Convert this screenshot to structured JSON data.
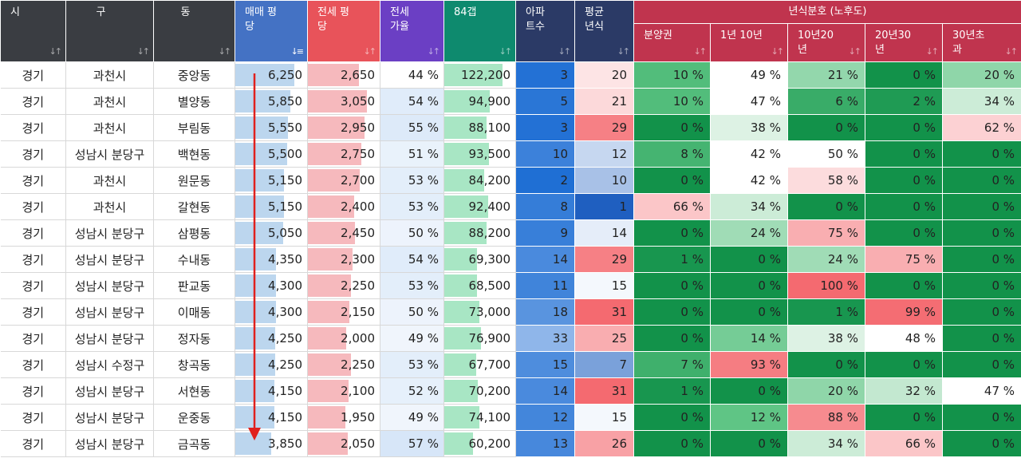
{
  "table": {
    "headers": {
      "si": "시",
      "gu": "구",
      "dong": "동",
      "sale_price": "매매 평\n당",
      "jeonse_price": "전세 평\n당",
      "jeonse_ratio": "전세\n가율",
      "gap84": "84갭",
      "apt_count": "아파\n트수",
      "avg_age": "평균\n년식",
      "age_group": "년식분호 (노후도)",
      "presale": "분양권",
      "y1_10": "1년 10년",
      "y10_20": "10년20\n년",
      "y20_30": "20년30\n년",
      "y30_plus": "30년초\n과"
    },
    "sorted_column": "sale_price",
    "colors": {
      "dark_header": "#3a3d42",
      "sale_header": "#4472c4",
      "jeonse_header": "#e8535a",
      "ratio_header": "#6b3fc4",
      "gap_header": "#0e8a6e",
      "apt_header": "#2b3a66",
      "age_header": "#2b3a66",
      "group_header": "#c0344e",
      "sale_bar": "#bcd6ee",
      "jeonse_bar": "#f6b9bd",
      "gap_bar": "#a8e6c4",
      "arrow": "#e0201d"
    },
    "max": {
      "sale": 6250,
      "jeonse": 3050,
      "gap": 122200,
      "ratio": 57
    },
    "rows": [
      {
        "si": "경기",
        "gu": "과천시",
        "dong": "중앙동",
        "sale": "6,250",
        "sale_v": 6250,
        "jeonse": "2,650",
        "jeonse_v": 2650,
        "ratio": "44 %",
        "ratio_v": 44,
        "gap": "122,200",
        "gap_v": 122200,
        "apts": "3",
        "apts_v": 3,
        "age": "20",
        "age_v": 20,
        "presale": "10 %",
        "presale_v": 10,
        "a1": "49 %",
        "a1_v": 49,
        "a2": "21 %",
        "a2_v": 21,
        "a3": "0 %",
        "a3_v": 0,
        "a4": "20 %",
        "a4_v": 20
      },
      {
        "si": "경기",
        "gu": "과천시",
        "dong": "별양동",
        "sale": "5,850",
        "sale_v": 5850,
        "jeonse": "3,050",
        "jeonse_v": 3050,
        "ratio": "54 %",
        "ratio_v": 54,
        "gap": "94,900",
        "gap_v": 94900,
        "apts": "5",
        "apts_v": 5,
        "age": "21",
        "age_v": 21,
        "presale": "10 %",
        "presale_v": 10,
        "a1": "47 %",
        "a1_v": 47,
        "a2": "6 %",
        "a2_v": 6,
        "a3": "2 %",
        "a3_v": 2,
        "a4": "34 %",
        "a4_v": 34
      },
      {
        "si": "경기",
        "gu": "과천시",
        "dong": "부림동",
        "sale": "5,550",
        "sale_v": 5550,
        "jeonse": "2,950",
        "jeonse_v": 2950,
        "ratio": "55 %",
        "ratio_v": 55,
        "gap": "88,100",
        "gap_v": 88100,
        "apts": "3",
        "apts_v": 3,
        "age": "29",
        "age_v": 29,
        "presale": "0 %",
        "presale_v": 0,
        "a1": "38 %",
        "a1_v": 38,
        "a2": "0 %",
        "a2_v": 0,
        "a3": "0 %",
        "a3_v": 0,
        "a4": "62 %",
        "a4_v": 62
      },
      {
        "si": "경기",
        "gu": "성남시 분당구",
        "dong": "백현동",
        "sale": "5,500",
        "sale_v": 5500,
        "jeonse": "2,750",
        "jeonse_v": 2750,
        "ratio": "51 %",
        "ratio_v": 51,
        "gap": "93,500",
        "gap_v": 93500,
        "apts": "10",
        "apts_v": 10,
        "age": "12",
        "age_v": 12,
        "presale": "8 %",
        "presale_v": 8,
        "a1": "42 %",
        "a1_v": 42,
        "a2": "50 %",
        "a2_v": 50,
        "a3": "0 %",
        "a3_v": 0,
        "a4": "0 %",
        "a4_v": 0
      },
      {
        "si": "경기",
        "gu": "과천시",
        "dong": "원문동",
        "sale": "5,150",
        "sale_v": 5150,
        "jeonse": "2,700",
        "jeonse_v": 2700,
        "ratio": "53 %",
        "ratio_v": 53,
        "gap": "84,200",
        "gap_v": 84200,
        "apts": "2",
        "apts_v": 2,
        "age": "10",
        "age_v": 10,
        "presale": "0 %",
        "presale_v": 0,
        "a1": "42 %",
        "a1_v": 42,
        "a2": "58 %",
        "a2_v": 58,
        "a3": "0 %",
        "a3_v": 0,
        "a4": "0 %",
        "a4_v": 0
      },
      {
        "si": "경기",
        "gu": "과천시",
        "dong": "갈현동",
        "sale": "5,150",
        "sale_v": 5150,
        "jeonse": "2,400",
        "jeonse_v": 2400,
        "ratio": "53 %",
        "ratio_v": 53,
        "gap": "92,400",
        "gap_v": 92400,
        "apts": "8",
        "apts_v": 8,
        "age": "1",
        "age_v": 1,
        "presale": "66 %",
        "presale_v": 66,
        "a1": "34 %",
        "a1_v": 34,
        "a2": "0 %",
        "a2_v": 0,
        "a3": "0 %",
        "a3_v": 0,
        "a4": "0 %",
        "a4_v": 0
      },
      {
        "si": "경기",
        "gu": "성남시 분당구",
        "dong": "삼평동",
        "sale": "5,050",
        "sale_v": 5050,
        "jeonse": "2,450",
        "jeonse_v": 2450,
        "ratio": "50 %",
        "ratio_v": 50,
        "gap": "88,200",
        "gap_v": 88200,
        "apts": "9",
        "apts_v": 9,
        "age": "14",
        "age_v": 14,
        "presale": "0 %",
        "presale_v": 0,
        "a1": "24 %",
        "a1_v": 24,
        "a2": "75 %",
        "a2_v": 75,
        "a3": "0 %",
        "a3_v": 0,
        "a4": "0 %",
        "a4_v": 0
      },
      {
        "si": "경기",
        "gu": "성남시 분당구",
        "dong": "수내동",
        "sale": "4,350",
        "sale_v": 4350,
        "jeonse": "2,300",
        "jeonse_v": 2300,
        "ratio": "54 %",
        "ratio_v": 54,
        "gap": "69,300",
        "gap_v": 69300,
        "apts": "14",
        "apts_v": 14,
        "age": "29",
        "age_v": 29,
        "presale": "1 %",
        "presale_v": 1,
        "a1": "0 %",
        "a1_v": 0,
        "a2": "24 %",
        "a2_v": 24,
        "a3": "75 %",
        "a3_v": 75,
        "a4": "0 %",
        "a4_v": 0
      },
      {
        "si": "경기",
        "gu": "성남시 분당구",
        "dong": "판교동",
        "sale": "4,300",
        "sale_v": 4300,
        "jeonse": "2,250",
        "jeonse_v": 2250,
        "ratio": "53 %",
        "ratio_v": 53,
        "gap": "68,500",
        "gap_v": 68500,
        "apts": "11",
        "apts_v": 11,
        "age": "15",
        "age_v": 15,
        "presale": "0 %",
        "presale_v": 0,
        "a1": "0 %",
        "a1_v": 0,
        "a2": "100 %",
        "a2_v": 100,
        "a3": "0 %",
        "a3_v": 0,
        "a4": "0 %",
        "a4_v": 0
      },
      {
        "si": "경기",
        "gu": "성남시 분당구",
        "dong": "이매동",
        "sale": "4,300",
        "sale_v": 4300,
        "jeonse": "2,150",
        "jeonse_v": 2150,
        "ratio": "50 %",
        "ratio_v": 50,
        "gap": "73,000",
        "gap_v": 73000,
        "apts": "18",
        "apts_v": 18,
        "age": "31",
        "age_v": 31,
        "presale": "0 %",
        "presale_v": 0,
        "a1": "0 %",
        "a1_v": 0,
        "a2": "1 %",
        "a2_v": 1,
        "a3": "99 %",
        "a3_v": 99,
        "a4": "0 %",
        "a4_v": 0
      },
      {
        "si": "경기",
        "gu": "성남시 분당구",
        "dong": "정자동",
        "sale": "4,250",
        "sale_v": 4250,
        "jeonse": "2,000",
        "jeonse_v": 2000,
        "ratio": "49 %",
        "ratio_v": 49,
        "gap": "76,900",
        "gap_v": 76900,
        "apts": "33",
        "apts_v": 33,
        "age": "25",
        "age_v": 25,
        "presale": "0 %",
        "presale_v": 0,
        "a1": "14 %",
        "a1_v": 14,
        "a2": "38 %",
        "a2_v": 38,
        "a3": "48 %",
        "a3_v": 48,
        "a4": "0 %",
        "a4_v": 0
      },
      {
        "si": "경기",
        "gu": "성남시 수정구",
        "dong": "창곡동",
        "sale": "4,250",
        "sale_v": 4250,
        "jeonse": "2,250",
        "jeonse_v": 2250,
        "ratio": "53 %",
        "ratio_v": 53,
        "gap": "67,700",
        "gap_v": 67700,
        "apts": "15",
        "apts_v": 15,
        "age": "7",
        "age_v": 7,
        "presale": "7 %",
        "presale_v": 7,
        "a1": "93 %",
        "a1_v": 93,
        "a2": "0 %",
        "a2_v": 0,
        "a3": "0 %",
        "a3_v": 0,
        "a4": "0 %",
        "a4_v": 0
      },
      {
        "si": "경기",
        "gu": "성남시 분당구",
        "dong": "서현동",
        "sale": "4,150",
        "sale_v": 4150,
        "jeonse": "2,100",
        "jeonse_v": 2100,
        "ratio": "52 %",
        "ratio_v": 52,
        "gap": "70,200",
        "gap_v": 70200,
        "apts": "14",
        "apts_v": 14,
        "age": "31",
        "age_v": 31,
        "presale": "1 %",
        "presale_v": 1,
        "a1": "0 %",
        "a1_v": 0,
        "a2": "20 %",
        "a2_v": 20,
        "a3": "32 %",
        "a3_v": 32,
        "a4": "47 %",
        "a4_v": 47
      },
      {
        "si": "경기",
        "gu": "성남시 분당구",
        "dong": "운중동",
        "sale": "4,150",
        "sale_v": 4150,
        "jeonse": "1,950",
        "jeonse_v": 1950,
        "ratio": "49 %",
        "ratio_v": 49,
        "gap": "74,100",
        "gap_v": 74100,
        "apts": "12",
        "apts_v": 12,
        "age": "15",
        "age_v": 15,
        "presale": "0 %",
        "presale_v": 0,
        "a1": "12 %",
        "a1_v": 12,
        "a2": "88 %",
        "a2_v": 88,
        "a3": "0 %",
        "a3_v": 0,
        "a4": "0 %",
        "a4_v": 0
      },
      {
        "si": "경기",
        "gu": "성남시 분당구",
        "dong": "금곡동",
        "sale": "3,850",
        "sale_v": 3850,
        "jeonse": "2,050",
        "jeonse_v": 2050,
        "ratio": "57 %",
        "ratio_v": 57,
        "gap": "60,200",
        "gap_v": 60200,
        "apts": "13",
        "apts_v": 13,
        "age": "26",
        "age_v": 26,
        "presale": "0 %",
        "presale_v": 0,
        "a1": "0 %",
        "a1_v": 0,
        "a2": "34 %",
        "a2_v": 34,
        "a3": "66 %",
        "a3_v": 66,
        "a4": "0 %",
        "a4_v": 0
      }
    ]
  }
}
